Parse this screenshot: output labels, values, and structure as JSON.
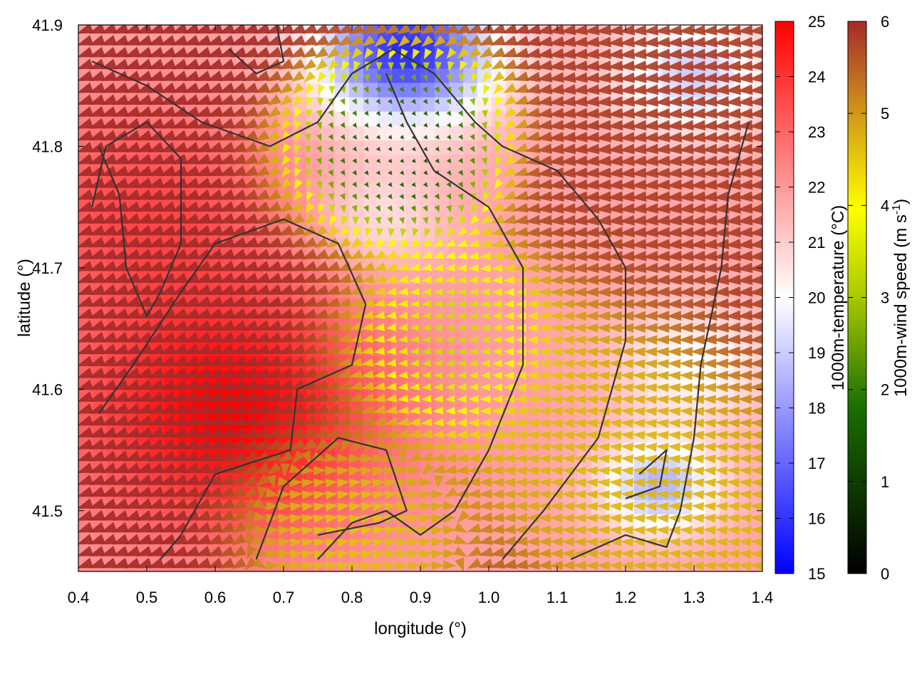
{
  "chart_data": {
    "type": "heatmap",
    "subtype": "temperature field with wind-vector overlay and contours",
    "xlabel": "longitude (°)",
    "ylabel": "latitude (°)",
    "xlim": [
      0.4,
      1.4
    ],
    "ylim": [
      41.45,
      41.9
    ],
    "x_ticks": [
      0.4,
      0.5,
      0.6,
      0.7,
      0.8,
      0.9,
      1.0,
      1.1,
      1.2,
      1.3,
      1.4
    ],
    "y_ticks": [
      41.5,
      41.6,
      41.7,
      41.8,
      41.9
    ],
    "grid": false,
    "colorbars": [
      {
        "label": "1000m-temperature (°C)",
        "range": [
          15,
          25
        ],
        "ticks": [
          15,
          16,
          17,
          18,
          19,
          20,
          21,
          22,
          23,
          24,
          25
        ],
        "colors": [
          "#0000ff",
          "#ffffff",
          "#ff0000"
        ]
      },
      {
        "label_main": "1000m-wind speed (m s",
        "label_sup": "-1",
        "label_end": ")",
        "range": [
          0,
          6
        ],
        "ticks": [
          0,
          1,
          2,
          3,
          4,
          5,
          6
        ],
        "colors": [
          "#000000",
          "#1a6e00",
          "#a8c800",
          "#ffff00",
          "#d4a017",
          "#a52a2a"
        ]
      }
    ],
    "temperature_centers": [
      {
        "lon": 0.62,
        "lat": 41.58,
        "value": 25.0,
        "spread": 0.16
      },
      {
        "lon": 0.5,
        "lat": 41.75,
        "value": 23.5,
        "spread": 0.14
      },
      {
        "lon": 0.88,
        "lat": 41.88,
        "value": 15.8,
        "spread": 0.09
      },
      {
        "lon": 0.84,
        "lat": 41.74,
        "value": 20.5,
        "spread": 0.07
      },
      {
        "lon": 1.25,
        "lat": 41.52,
        "value": 18.5,
        "spread": 0.06
      },
      {
        "lon": 1.3,
        "lat": 41.86,
        "value": 19.0,
        "spread": 0.08
      },
      {
        "lon": 1.3,
        "lat": 41.62,
        "value": 20.0,
        "spread": 0.08
      }
    ],
    "temperature_background": 21.8,
    "wind_regions": [
      {
        "lon": 0.55,
        "lat": 41.65,
        "speed": 6.0,
        "dir": 200,
        "spread": 0.2
      },
      {
        "lon": 0.84,
        "lat": 41.78,
        "speed": 0.3,
        "dir": 315,
        "spread": 0.07
      },
      {
        "lon": 0.93,
        "lat": 41.64,
        "speed": 2.2,
        "dir": 180,
        "spread": 0.08
      },
      {
        "lon": 1.3,
        "lat": 41.72,
        "speed": 5.8,
        "dir": 185,
        "spread": 0.12
      },
      {
        "lon": 1.15,
        "lat": 41.6,
        "speed": 4.5,
        "dir": 175,
        "spread": 0.1
      },
      {
        "lon": 0.78,
        "lat": 41.5,
        "speed": 4.2,
        "dir": 10,
        "spread": 0.07
      }
    ],
    "contours": [
      [
        [
          0.42,
          41.87
        ],
        [
          0.5,
          41.85
        ],
        [
          0.58,
          41.82
        ],
        [
          0.68,
          41.8
        ],
        [
          0.75,
          41.82
        ],
        [
          0.8,
          41.86
        ],
        [
          0.86,
          41.88
        ],
        [
          0.92,
          41.86
        ],
        [
          0.98,
          41.82
        ],
        [
          1.02,
          41.8
        ],
        [
          1.1,
          41.78
        ],
        [
          1.16,
          41.74
        ],
        [
          1.2,
          41.7
        ],
        [
          1.2,
          41.64
        ],
        [
          1.16,
          41.56
        ],
        [
          1.08,
          41.5
        ],
        [
          1.02,
          41.46
        ]
      ],
      [
        [
          0.42,
          41.75
        ],
        [
          0.44,
          41.8
        ],
        [
          0.5,
          41.82
        ],
        [
          0.55,
          41.79
        ],
        [
          0.55,
          41.72
        ],
        [
          0.52,
          41.68
        ],
        [
          0.5,
          41.66
        ],
        [
          0.47,
          41.7
        ],
        [
          0.46,
          41.76
        ],
        [
          0.43,
          41.8
        ]
      ],
      [
        [
          0.43,
          41.58
        ],
        [
          0.48,
          41.62
        ],
        [
          0.55,
          41.68
        ],
        [
          0.6,
          41.72
        ],
        [
          0.7,
          41.74
        ],
        [
          0.78,
          41.72
        ],
        [
          0.82,
          41.67
        ],
        [
          0.8,
          41.62
        ],
        [
          0.72,
          41.6
        ],
        [
          0.71,
          41.55
        ],
        [
          0.6,
          41.53
        ],
        [
          0.55,
          41.48
        ],
        [
          0.52,
          41.46
        ]
      ],
      [
        [
          0.66,
          41.46
        ],
        [
          0.7,
          41.52
        ],
        [
          0.78,
          41.56
        ],
        [
          0.85,
          41.55
        ],
        [
          0.88,
          41.5
        ],
        [
          0.84,
          41.49
        ],
        [
          0.75,
          41.48
        ]
      ],
      [
        [
          0.75,
          41.46
        ],
        [
          0.8,
          41.49
        ],
        [
          0.85,
          41.5
        ],
        [
          0.9,
          41.48
        ],
        [
          0.95,
          41.5
        ],
        [
          1.0,
          41.55
        ],
        [
          1.05,
          41.62
        ],
        [
          1.05,
          41.7
        ],
        [
          1.0,
          41.75
        ],
        [
          0.92,
          41.78
        ],
        [
          0.88,
          41.82
        ],
        [
          0.85,
          41.86
        ]
      ],
      [
        [
          1.12,
          41.46
        ],
        [
          1.2,
          41.48
        ],
        [
          1.26,
          41.47
        ],
        [
          1.28,
          41.5
        ],
        [
          1.3,
          41.56
        ],
        [
          1.31,
          41.62
        ],
        [
          1.34,
          41.7
        ],
        [
          1.35,
          41.76
        ],
        [
          1.38,
          41.82
        ]
      ],
      [
        [
          1.2,
          41.51
        ],
        [
          1.25,
          41.52
        ],
        [
          1.26,
          41.55
        ],
        [
          1.22,
          41.53
        ]
      ],
      [
        [
          0.62,
          41.88
        ],
        [
          0.66,
          41.86
        ],
        [
          0.7,
          41.87
        ],
        [
          0.69,
          41.9
        ]
      ]
    ]
  }
}
